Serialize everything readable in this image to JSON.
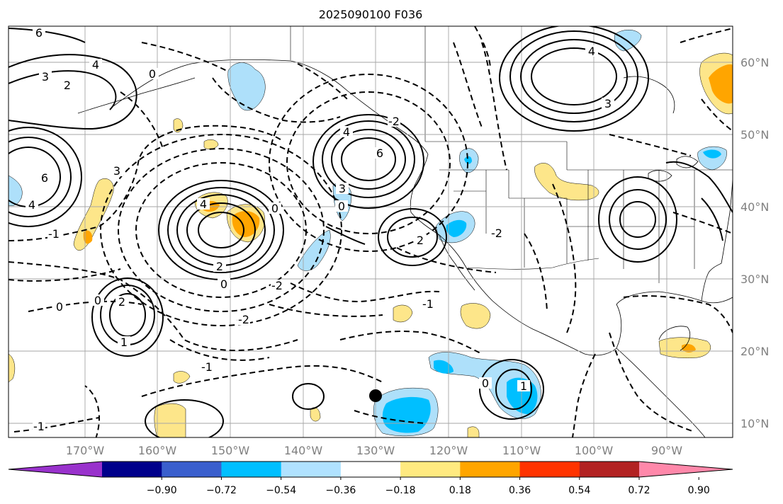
{
  "title": "2025090100 F036",
  "map": {
    "lon_labels": [
      "170°W",
      "160°W",
      "150°W",
      "140°W",
      "130°W",
      "120°W",
      "110°W",
      "100°W",
      "90°W"
    ],
    "lat_labels": [
      "60°N",
      "50°N",
      "40°N",
      "30°N",
      "20°N",
      "10°N"
    ],
    "contour_labels": [
      "6",
      "4",
      "3",
      "2",
      "0",
      "-1",
      "-2",
      "3",
      "6",
      "4",
      "6",
      "4",
      "-2",
      "0",
      "3",
      "4",
      "2",
      "0",
      "-2",
      "1",
      "2",
      "0",
      "-1",
      "0",
      "-2",
      "0",
      "4",
      "3",
      "2",
      "-1",
      "-2",
      "1",
      "0",
      "-1"
    ],
    "point_marker": "black-dot",
    "fill_colors": {
      "neg_light": "#aee0fa",
      "neg_mid": "#00bfff",
      "pos_light": "#fde68a",
      "pos_mid": "#ffa500"
    },
    "line_color": "#000000",
    "grid_color": "#a6a6a6"
  },
  "colorbar": {
    "ticks": [
      "−0.90",
      "−0.72",
      "−0.54",
      "−0.36",
      "−0.18",
      "0.18",
      "0.36",
      "0.54",
      "0.72",
      "0.90"
    ],
    "colors": [
      "#9932cc",
      "#00008b",
      "#3a5fcd",
      "#00bfff",
      "#b0e2ff",
      "#ffffff",
      "#ffea80",
      "#ffa500",
      "#ff3300",
      "#b22222",
      "#ff88aa"
    ]
  }
}
